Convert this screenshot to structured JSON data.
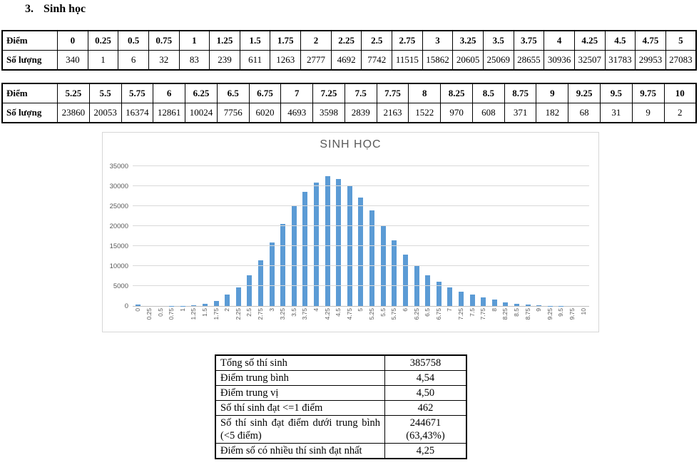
{
  "page": {
    "heading_number": "3.",
    "heading_text": "Sinh học"
  },
  "score_table_1": {
    "score_label": "Điểm",
    "count_label": "Số lượng",
    "scores": [
      "0",
      "0.25",
      "0.5",
      "0.75",
      "1",
      "1.25",
      "1.5",
      "1.75",
      "2",
      "2.25",
      "2.5",
      "2.75",
      "3",
      "3.25",
      "3.5",
      "3.75",
      "4",
      "4.25",
      "4.5",
      "4.75",
      "5"
    ],
    "counts": [
      340,
      1,
      6,
      32,
      83,
      239,
      611,
      1263,
      2777,
      4692,
      7742,
      11515,
      15862,
      20605,
      25069,
      28655,
      30936,
      32507,
      31783,
      29953,
      27083
    ]
  },
  "score_table_2": {
    "score_label": "Điểm",
    "count_label": "Số lượng",
    "scores": [
      "5.25",
      "5.5",
      "5.75",
      "6",
      "6.25",
      "6.5",
      "6.75",
      "7",
      "7.25",
      "7.5",
      "7.75",
      "8",
      "8.25",
      "8.5",
      "8.75",
      "9",
      "9.25",
      "9.5",
      "9.75",
      "10"
    ],
    "counts": [
      23860,
      20053,
      16374,
      12861,
      10024,
      7756,
      6020,
      4693,
      3598,
      2839,
      2163,
      1522,
      970,
      608,
      371,
      182,
      68,
      31,
      9,
      2
    ]
  },
  "chart_data": {
    "type": "bar",
    "title": "SINH HỌC",
    "categories": [
      "0",
      "0.25",
      "0.5",
      "0.75",
      "1",
      "1.25",
      "1.5",
      "1.75",
      "2",
      "2.25",
      "2.5",
      "2.75",
      "3",
      "3.25",
      "3.5",
      "3.75",
      "4",
      "4.25",
      "4.5",
      "4.75",
      "5",
      "5.25",
      "5.5",
      "5.75",
      "6",
      "6.25",
      "6.5",
      "6.75",
      "7",
      "7.25",
      "7.5",
      "7.75",
      "8",
      "8.25",
      "8.5",
      "8.75",
      "9",
      "9.25",
      "9.5",
      "9.75",
      "10"
    ],
    "values": [
      340,
      1,
      6,
      32,
      83,
      239,
      611,
      1263,
      2777,
      4692,
      7742,
      11515,
      15862,
      20605,
      25069,
      28655,
      30936,
      32507,
      31783,
      29953,
      27083,
      23860,
      20053,
      16374,
      12861,
      10024,
      7756,
      6020,
      4693,
      3598,
      2839,
      2163,
      1522,
      970,
      608,
      371,
      182,
      68,
      31,
      9,
      2
    ],
    "xlabel": "",
    "ylabel": "",
    "ylim": [
      0,
      35000
    ],
    "yticks": [
      0,
      5000,
      10000,
      15000,
      20000,
      25000,
      30000,
      35000
    ],
    "grid": true,
    "legend_position": "none",
    "bar_color": "#5b9bd5",
    "gridline_color": "#d9d9d9",
    "axis_text_color": "#595959",
    "title_color": "#595959"
  },
  "summary_table": {
    "rows": [
      {
        "label": "Tổng số thí sinh",
        "value_lines": [
          "385758"
        ]
      },
      {
        "label": "Điểm trung bình",
        "value_lines": [
          "4,54"
        ]
      },
      {
        "label": "Điểm trung vị",
        "value_lines": [
          "4,50"
        ]
      },
      {
        "label": "Số thí sinh đạt <=1 điểm",
        "value_lines": [
          "462"
        ]
      },
      {
        "label": "Số thí sinh đạt điểm dưới trung bình (<5 điểm)",
        "value_lines": [
          "244671",
          "(63,43%)"
        ]
      },
      {
        "label": "Điểm số có nhiều thí sinh đạt nhất",
        "value_lines": [
          "4,25"
        ]
      }
    ]
  }
}
